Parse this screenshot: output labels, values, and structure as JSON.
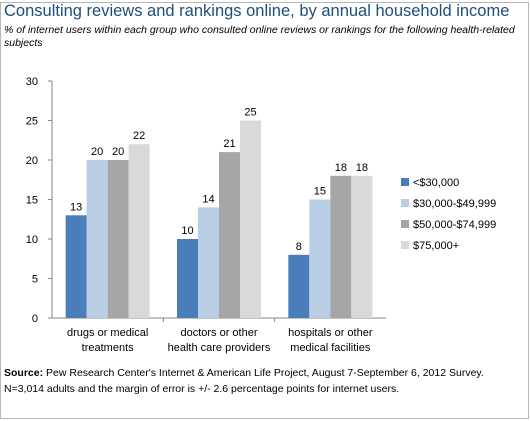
{
  "title": "Consulting reviews and rankings online, by annual household income",
  "subtitle": "% of internet users within each group who consulted online reviews or rankings for the following health-related subjects",
  "source": {
    "label": "Source:",
    "text": "Pew Research Center's Internet & American Life Project, August 7-September 6, 2012 Survey. N=3,014 adults and the margin of error is +/- 2.6 percentage points for internet users."
  },
  "chart_data": {
    "type": "bar",
    "categories": [
      [
        "drugs or medical",
        "treatments"
      ],
      [
        "doctors or other",
        "health care providers"
      ],
      [
        "hospitals or other",
        "medical facilities"
      ]
    ],
    "series": [
      {
        "name": "<$30,000",
        "values": [
          13,
          10,
          8
        ],
        "color": "#4a7ebb"
      },
      {
        "name": "$30,000-$49,999",
        "values": [
          20,
          14,
          15
        ],
        "color": "#b9cde5"
      },
      {
        "name": "$50,000-$74,999",
        "values": [
          20,
          21,
          18
        ],
        "color": "#a6a6a6"
      },
      {
        "name": "$75,000+",
        "values": [
          22,
          25,
          18
        ],
        "color": "#d9d9d9"
      }
    ],
    "ylim": [
      0,
      30
    ],
    "yticks": [
      0,
      5,
      10,
      15,
      20,
      25,
      30
    ],
    "grid": false,
    "legend": "right"
  }
}
